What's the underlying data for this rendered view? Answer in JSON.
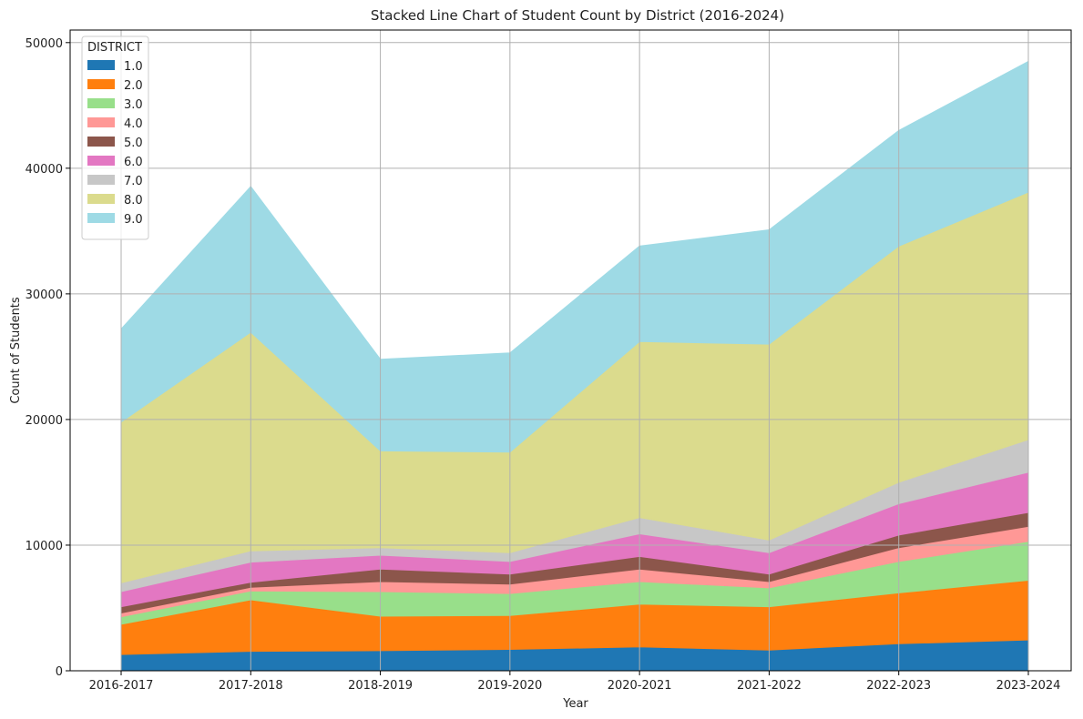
{
  "chart_data": {
    "type": "area",
    "stacked": true,
    "title": "Stacked Line Chart of Student Count by District (2016-2024)",
    "xlabel": "Year",
    "ylabel": "Count of Students",
    "categories": [
      "2016-2017",
      "2017-2018",
      "2018-2019",
      "2019-2020",
      "2020-2021",
      "2021-2022",
      "2022-2023",
      "2023-2024"
    ],
    "ylim": [
      0,
      51000
    ],
    "yticks": [
      0,
      10000,
      20000,
      30000,
      40000,
      50000
    ],
    "grid": true,
    "legend": {
      "title": "DISTRICT",
      "placement": "top-left"
    },
    "series": [
      {
        "name": "1.0",
        "color": "#1f77b4",
        "values": [
          1300,
          1550,
          1600,
          1700,
          1900,
          1650,
          2150,
          2450
        ]
      },
      {
        "name": "2.0",
        "color": "#ff7f0e",
        "values": [
          2400,
          4100,
          2750,
          2700,
          3400,
          3450,
          4050,
          4750
        ]
      },
      {
        "name": "3.0",
        "color": "#98df8a",
        "values": [
          600,
          700,
          1950,
          1750,
          1800,
          1500,
          2500,
          3100
        ]
      },
      {
        "name": "4.0",
        "color": "#ff9896",
        "values": [
          300,
          300,
          800,
          750,
          1000,
          500,
          1100,
          1200
        ]
      },
      {
        "name": "5.0",
        "color": "#8c564b",
        "values": [
          500,
          400,
          1000,
          800,
          1000,
          600,
          1000,
          1100
        ]
      },
      {
        "name": "6.0",
        "color": "#e377c2",
        "values": [
          1200,
          1600,
          1100,
          1000,
          1800,
          1700,
          2500,
          3200
        ]
      },
      {
        "name": "7.0",
        "color": "#c7c7c7",
        "values": [
          700,
          900,
          600,
          700,
          1300,
          1000,
          1700,
          2600
        ]
      },
      {
        "name": "8.0",
        "color": "#dbdb8d",
        "values": [
          12800,
          17400,
          7700,
          8000,
          14000,
          15600,
          18800,
          19700
        ]
      },
      {
        "name": "9.0",
        "color": "#9edae5",
        "values": [
          7400,
          11600,
          7300,
          7900,
          7600,
          9100,
          9200,
          10400
        ]
      }
    ]
  }
}
